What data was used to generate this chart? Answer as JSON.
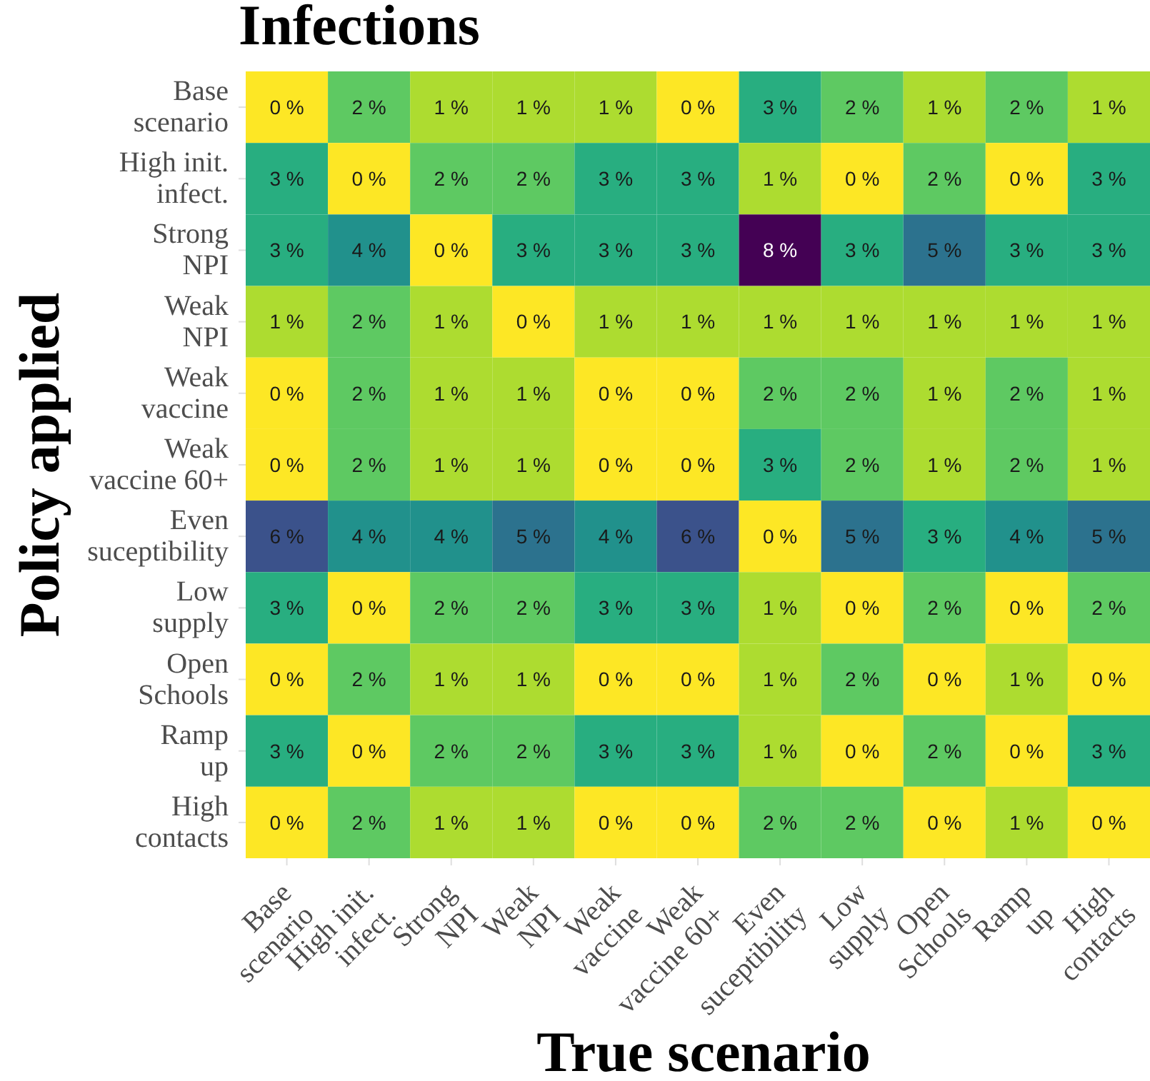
{
  "chart_data": {
    "type": "heatmap",
    "title": "Infections",
    "xlabel": "True scenario",
    "ylabel": "Policy applied",
    "categories": [
      "Base\nscenario",
      "High init.\ninfect.",
      "Strong\nNPI",
      "Weak\nNPI",
      "Weak\nvaccine",
      "Weak\nvaccine 60+",
      "Even\nsuceptibility",
      "Low\nsupply",
      "Open\nSchools",
      "Ramp\nup",
      "High\ncontacts"
    ],
    "y_categories": [
      "Base\nscenario",
      "High init.\ninfect.",
      "Strong\nNPI",
      "Weak\nNPI",
      "Weak\nvaccine",
      "Weak\nvaccine 60+",
      "Even\nsuceptibility",
      "Low\nsupply",
      "Open\nSchools",
      "Ramp\nup",
      "High\ncontacts"
    ],
    "cells": [
      [
        0,
        2,
        1,
        1,
        1,
        0,
        3,
        2,
        1,
        2,
        1
      ],
      [
        3,
        0,
        2,
        2,
        3,
        3,
        1,
        0,
        2,
        0,
        3
      ],
      [
        3,
        4,
        0,
        3,
        3,
        3,
        8,
        3,
        5,
        3,
        3
      ],
      [
        1,
        2,
        1,
        0,
        1,
        1,
        1,
        1,
        1,
        1,
        1
      ],
      [
        0,
        2,
        1,
        1,
        0,
        0,
        2,
        2,
        1,
        2,
        1
      ],
      [
        0,
        2,
        1,
        1,
        0,
        0,
        3,
        2,
        1,
        2,
        1
      ],
      [
        6,
        4,
        4,
        5,
        4,
        6,
        0,
        5,
        3,
        4,
        5
      ],
      [
        3,
        0,
        2,
        2,
        3,
        3,
        1,
        0,
        2,
        0,
        2
      ],
      [
        0,
        2,
        1,
        1,
        0,
        0,
        1,
        2,
        0,
        1,
        0
      ],
      [
        3,
        0,
        2,
        2,
        3,
        3,
        1,
        0,
        2,
        0,
        3
      ],
      [
        0,
        2,
        1,
        1,
        0,
        0,
        2,
        2,
        0,
        1,
        0
      ]
    ],
    "cell_labels": [
      [
        "0 %",
        "2 %",
        "1 %",
        "1 %",
        "1 %",
        "0 %",
        "3 %",
        "2 %",
        "1 %",
        "2 %",
        "1 %"
      ],
      [
        "3 %",
        "0 %",
        "2 %",
        "2 %",
        "3 %",
        "3 %",
        "1 %",
        "0 %",
        "2 %",
        "0 %",
        "3 %"
      ],
      [
        "3 %",
        "4 %",
        "0 %",
        "3 %",
        "3 %",
        "3 %",
        "8 %",
        "3 %",
        "5 %",
        "3 %",
        "3 %"
      ],
      [
        "1 %",
        "2 %",
        "1 %",
        "0 %",
        "1 %",
        "1 %",
        "1 %",
        "1 %",
        "1 %",
        "1 %",
        "1 %"
      ],
      [
        "0 %",
        "2 %",
        "1 %",
        "1 %",
        "0 %",
        "0 %",
        "2 %",
        "2 %",
        "1 %",
        "2 %",
        "1 %"
      ],
      [
        "0 %",
        "2 %",
        "1 %",
        "1 %",
        "0 %",
        "0 %",
        "3 %",
        "2 %",
        "1 %",
        "2 %",
        "1 %"
      ],
      [
        "6 %",
        "4 %",
        "4 %",
        "5 %",
        "4 %",
        "6 %",
        "0 %",
        "5 %",
        "3 %",
        "4 %",
        "5 %"
      ],
      [
        "3 %",
        "0 %",
        "2 %",
        "2 %",
        "3 %",
        "3 %",
        "1 %",
        "0 %",
        "2 %",
        "0 %",
        "2 %"
      ],
      [
        "0 %",
        "2 %",
        "1 %",
        "1 %",
        "0 %",
        "0 %",
        "1 %",
        "2 %",
        "0 %",
        "1 %",
        "0 %"
      ],
      [
        "3 %",
        "0 %",
        "2 %",
        "2 %",
        "3 %",
        "3 %",
        "1 %",
        "0 %",
        "2 %",
        "0 %",
        "3 %"
      ],
      [
        "0 %",
        "2 %",
        "1 %",
        "1 %",
        "0 %",
        "0 %",
        "2 %",
        "2 %",
        "0 %",
        "1 %",
        "0 %"
      ]
    ]
  }
}
